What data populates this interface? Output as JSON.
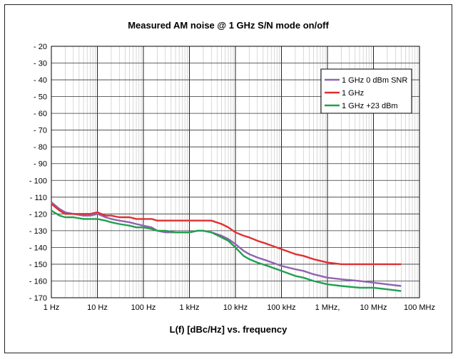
{
  "chart_data": {
    "type": "line",
    "title": "Measured AM noise @ 1 GHz S/N mode on/off",
    "xlabel": "L(f) [dBc/Hz] vs. frequency",
    "ylabel": "",
    "x_scale": "log",
    "xlim": [
      1,
      100000000
    ],
    "ylim": [
      -170,
      -20
    ],
    "grid": true,
    "legend_position": "top-right",
    "x_ticks": [
      1,
      10,
      100,
      1000,
      10000,
      100000,
      1000000,
      10000000,
      100000000
    ],
    "x_tick_labels": [
      "1 Hz",
      "10 Hz",
      "100 Hz",
      "1 kHz",
      "10 kHz",
      "100 kHz",
      "1 MHz,",
      "10 MHz",
      "100 MHz"
    ],
    "y_ticks": [
      -20,
      -30,
      -40,
      -50,
      -60,
      -70,
      -80,
      -90,
      -100,
      -110,
      -120,
      -130,
      -140,
      -150,
      -160,
      -170
    ],
    "y_tick_labels": [
      "- 20",
      "- 30",
      "- 40",
      "- 50",
      "- 60",
      "- 70",
      "- 80",
      "- 90",
      "- 100",
      "- 110",
      "- 120",
      "- 130",
      "- 140",
      "- 150",
      "- 160",
      "- 170"
    ],
    "series": [
      {
        "name": "1 GHz 0 dBm SNR",
        "color": "#9063b0",
        "x": [
          1,
          1.5,
          2,
          3,
          5,
          7,
          10,
          15,
          20,
          30,
          50,
          70,
          100,
          150,
          200,
          300,
          500,
          700,
          1000,
          1500,
          2000,
          3000,
          5000,
          7000,
          10000,
          15000,
          20000,
          30000,
          50000,
          100000,
          200000,
          300000,
          500000,
          1000000,
          2000000,
          5000000,
          10000000,
          20000000,
          40000000
        ],
        "y": [
          -113,
          -117,
          -119,
          -120,
          -121,
          -121,
          -120,
          -122,
          -123,
          -124,
          -125,
          -126,
          -127,
          -128,
          -130,
          -131,
          -131,
          -131,
          -131,
          -130,
          -130,
          -131,
          -133,
          -135,
          -138,
          -142,
          -144,
          -146,
          -148,
          -151,
          -153,
          -154,
          -156,
          -158,
          -159,
          -160,
          -161,
          -162,
          -163
        ]
      },
      {
        "name": "1 GHz",
        "color": "#e03030",
        "x": [
          1,
          1.5,
          2,
          3,
          5,
          7,
          10,
          15,
          20,
          30,
          50,
          70,
          100,
          150,
          200,
          300,
          500,
          700,
          1000,
          1500,
          2000,
          3000,
          5000,
          7000,
          10000,
          15000,
          20000,
          30000,
          50000,
          100000,
          200000,
          300000,
          500000,
          1000000,
          2000000,
          5000000,
          10000000,
          20000000,
          40000000
        ],
        "y": [
          -114,
          -118,
          -120,
          -120,
          -120,
          -120,
          -119,
          -121,
          -121,
          -122,
          -122,
          -123,
          -123,
          -123,
          -124,
          -124,
          -124,
          -124,
          -124,
          -124,
          -124,
          -124,
          -126,
          -128,
          -131,
          -133,
          -134,
          -136,
          -138,
          -141,
          -144,
          -145,
          -147,
          -149,
          -150,
          -150,
          -150,
          -150,
          -150
        ]
      },
      {
        "name": "1 GHz +23 dBm",
        "color": "#20a050",
        "x": [
          1,
          1.5,
          2,
          3,
          5,
          7,
          10,
          15,
          20,
          30,
          50,
          70,
          100,
          150,
          200,
          300,
          500,
          700,
          1000,
          1500,
          2000,
          3000,
          5000,
          7000,
          10000,
          15000,
          20000,
          30000,
          50000,
          100000,
          200000,
          300000,
          500000,
          1000000,
          2000000,
          5000000,
          10000000,
          20000000,
          40000000
        ],
        "y": [
          -118,
          -121,
          -122,
          -122,
          -123,
          -123,
          -123,
          -124,
          -125,
          -126,
          -127,
          -128,
          -128,
          -129,
          -130,
          -130,
          -131,
          -131,
          -131,
          -130,
          -130,
          -131,
          -134,
          -136,
          -140,
          -145,
          -147,
          -149,
          -151,
          -154,
          -157,
          -158,
          -160,
          -162,
          -163,
          -164,
          -164,
          -165,
          -166
        ]
      }
    ]
  }
}
